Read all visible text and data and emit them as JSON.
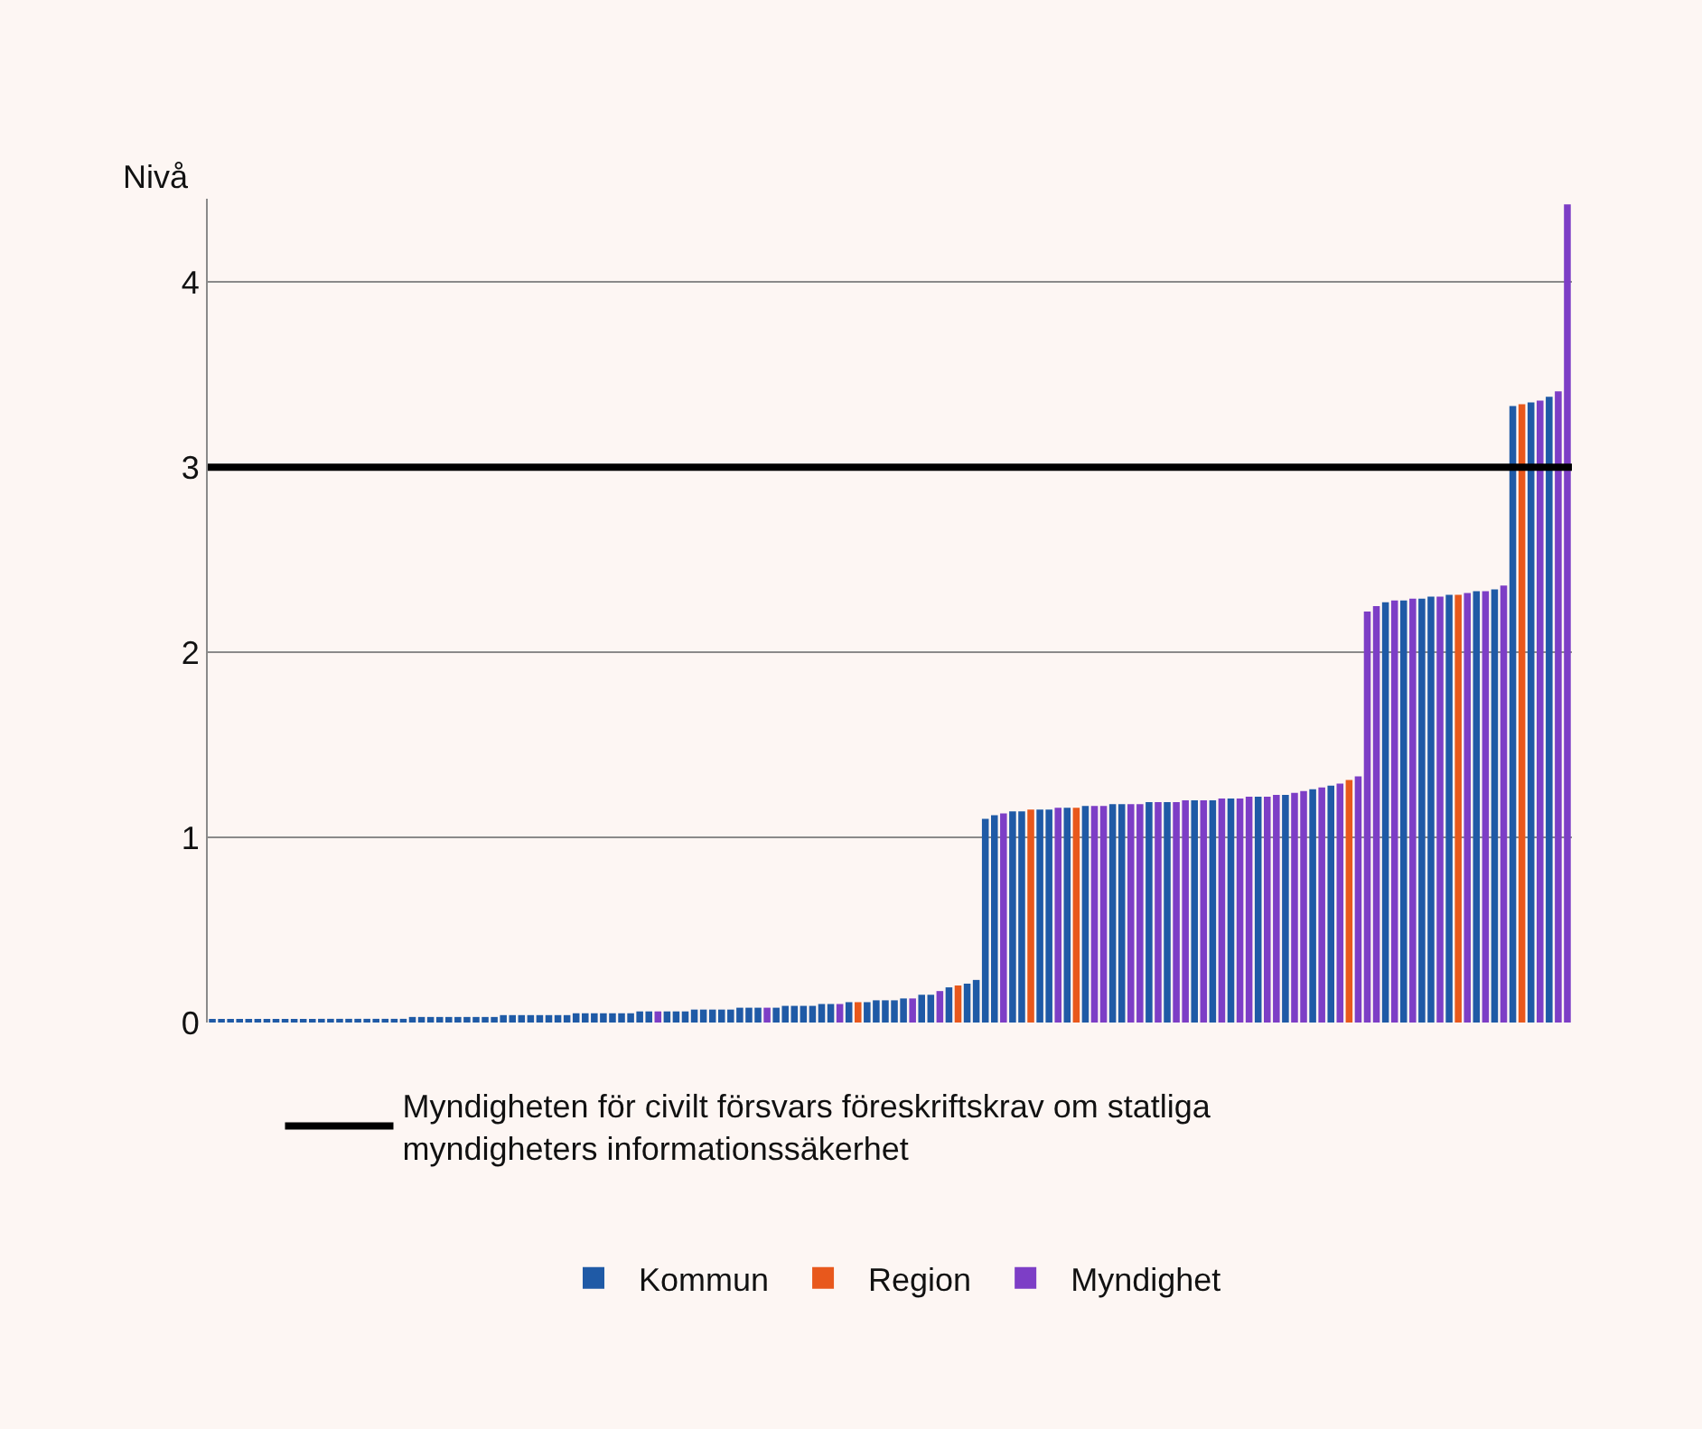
{
  "chart_data": {
    "type": "bar",
    "ylabel": "Nivå",
    "categories": [
      null,
      null,
      null,
      null,
      null,
      null,
      null,
      null,
      null,
      null,
      null,
      null,
      null,
      null,
      null,
      null,
      null,
      null,
      null,
      null,
      null,
      null,
      null,
      null,
      null,
      null,
      null,
      null,
      null,
      null,
      null,
      null,
      null,
      null,
      null,
      null,
      null,
      null,
      null,
      null,
      null,
      null,
      null,
      null,
      null,
      null,
      null,
      null,
      null,
      null,
      null,
      null,
      null,
      null,
      null,
      null,
      null,
      null,
      null,
      null,
      null,
      null,
      null,
      null,
      null,
      null,
      null,
      null,
      null,
      null,
      null,
      null,
      null,
      null,
      null,
      null,
      null,
      null,
      null,
      null,
      null,
      null,
      null,
      null,
      null,
      null,
      null,
      null,
      null,
      null,
      null,
      null,
      null,
      null,
      null,
      null,
      null,
      null,
      null,
      null,
      null,
      null,
      null,
      null,
      null,
      null,
      null,
      null,
      null,
      null,
      null,
      null,
      null,
      null,
      null,
      null,
      null,
      null,
      null,
      null,
      null,
      null,
      null,
      null,
      null,
      null,
      null,
      null,
      null,
      null,
      null,
      null,
      null,
      null,
      null,
      null,
      null,
      null,
      null,
      null,
      null,
      null,
      null,
      null,
      null,
      null,
      null,
      null,
      null,
      null
    ],
    "series": [
      {
        "name": "Kommun",
        "color": "#1f5aa6",
        "values": [
          0.01,
          0.01,
          0.01,
          0.01,
          0.01,
          0.01,
          0.01,
          0.01,
          0.01,
          0.01,
          0.01,
          0.01,
          0.02,
          0.02,
          0.02,
          0.02,
          0.02,
          0.02,
          0.02,
          0.02,
          0.02,
          0.02,
          0.03,
          0.03,
          0.03,
          0.03,
          0.03,
          0.03,
          0.03,
          0.03,
          0.03,
          0.03,
          0.04,
          0.04,
          0.04,
          0.04,
          0.04,
          0.04,
          0.04,
          0.04,
          0.05,
          0.05,
          0.05,
          0.05,
          0.05,
          0.05,
          0.05,
          0.06,
          0.06,
          null,
          0.06,
          0.06,
          0.06,
          0.07,
          0.07,
          0.07,
          0.07,
          0.07,
          0.08,
          0.08,
          0.08,
          null,
          0.08,
          0.09,
          0.09,
          0.09,
          0.09,
          0.1,
          0.1,
          null,
          0.11,
          null,
          0.11,
          0.12,
          0.12,
          0.12,
          0.13,
          null,
          0.15,
          0.15,
          null,
          0.19,
          null,
          0.21,
          0.23,
          1.1,
          1.12,
          null,
          1.14,
          1.14,
          null,
          1.15,
          1.15,
          null,
          1.16,
          null,
          1.17,
          null,
          null,
          1.18,
          1.18,
          null,
          null,
          1.19,
          null,
          1.19,
          null,
          null,
          1.2,
          null,
          1.2,
          null,
          1.21,
          null,
          null,
          1.22,
          null,
          null,
          1.23,
          null,
          null,
          1.26,
          null,
          1.28,
          null,
          null,
          null,
          null,
          null,
          2.27,
          null,
          2.28,
          null,
          2.29,
          2.3,
          null,
          2.31,
          null,
          null,
          2.33,
          null,
          2.34,
          null,
          3.33,
          null,
          3.35,
          null,
          3.38,
          null,
          null
        ]
      },
      {
        "name": "Region",
        "color": "#e8581c",
        "values": [
          null,
          null,
          null,
          null,
          null,
          null,
          null,
          null,
          null,
          null,
          null,
          null,
          null,
          null,
          null,
          null,
          null,
          null,
          null,
          null,
          null,
          null,
          null,
          null,
          null,
          null,
          null,
          null,
          null,
          null,
          null,
          null,
          null,
          null,
          null,
          null,
          null,
          null,
          null,
          null,
          null,
          null,
          null,
          null,
          null,
          null,
          null,
          null,
          null,
          null,
          null,
          null,
          null,
          null,
          null,
          null,
          null,
          null,
          null,
          null,
          null,
          null,
          null,
          null,
          null,
          null,
          null,
          null,
          null,
          null,
          null,
          0.11,
          null,
          null,
          null,
          null,
          null,
          null,
          null,
          null,
          null,
          null,
          0.2,
          null,
          null,
          null,
          null,
          null,
          null,
          null,
          1.15,
          null,
          null,
          null,
          null,
          1.16,
          null,
          null,
          null,
          null,
          null,
          null,
          null,
          null,
          null,
          null,
          null,
          null,
          null,
          null,
          null,
          null,
          null,
          null,
          null,
          null,
          null,
          null,
          null,
          null,
          null,
          null,
          null,
          null,
          null,
          1.31,
          null,
          null,
          null,
          null,
          null,
          null,
          null,
          null,
          null,
          null,
          null,
          2.31,
          null,
          null,
          null,
          null,
          null,
          null,
          3.34,
          null,
          null,
          null,
          null,
          null
        ]
      },
      {
        "name": "Myndighet",
        "color": "#7d3ec6",
        "values": [
          null,
          null,
          null,
          null,
          null,
          null,
          null,
          null,
          null,
          null,
          null,
          null,
          null,
          null,
          null,
          null,
          null,
          null,
          null,
          null,
          null,
          null,
          null,
          null,
          null,
          null,
          null,
          null,
          null,
          null,
          null,
          null,
          null,
          null,
          null,
          null,
          null,
          null,
          null,
          null,
          null,
          null,
          null,
          null,
          null,
          null,
          null,
          null,
          null,
          0.06,
          null,
          null,
          null,
          null,
          null,
          null,
          null,
          null,
          null,
          null,
          null,
          0.08,
          null,
          null,
          null,
          null,
          null,
          null,
          null,
          0.1,
          null,
          null,
          null,
          null,
          null,
          null,
          null,
          0.13,
          null,
          null,
          0.17,
          null,
          null,
          null,
          null,
          null,
          null,
          1.13,
          null,
          null,
          null,
          null,
          null,
          1.16,
          null,
          null,
          null,
          1.17,
          1.17,
          null,
          null,
          1.18,
          1.18,
          null,
          1.19,
          null,
          1.19,
          1.2,
          null,
          1.2,
          null,
          1.21,
          null,
          1.21,
          1.22,
          null,
          1.22,
          1.23,
          null,
          1.24,
          1.25,
          null,
          1.27,
          null,
          1.29,
          null,
          1.33,
          2.22,
          2.25,
          null,
          2.28,
          null,
          2.29,
          null,
          null,
          2.3,
          null,
          null,
          2.32,
          null,
          2.33,
          null,
          2.36,
          null,
          null,
          null,
          3.36,
          null,
          3.41,
          4.42
        ]
      }
    ],
    "ylim": [
      0,
      4.45
    ],
    "yticks": [
      0,
      1,
      2,
      3,
      4
    ],
    "grid": "y",
    "tick_labels": "y",
    "legend": "bottom",
    "ref_lines": [
      {
        "axis": "y",
        "value": 3,
        "label": "Myndigheten för civilt försvars föreskriftskrav om statliga myndigheters informationssäkerhet",
        "color": "#000000"
      }
    ]
  }
}
